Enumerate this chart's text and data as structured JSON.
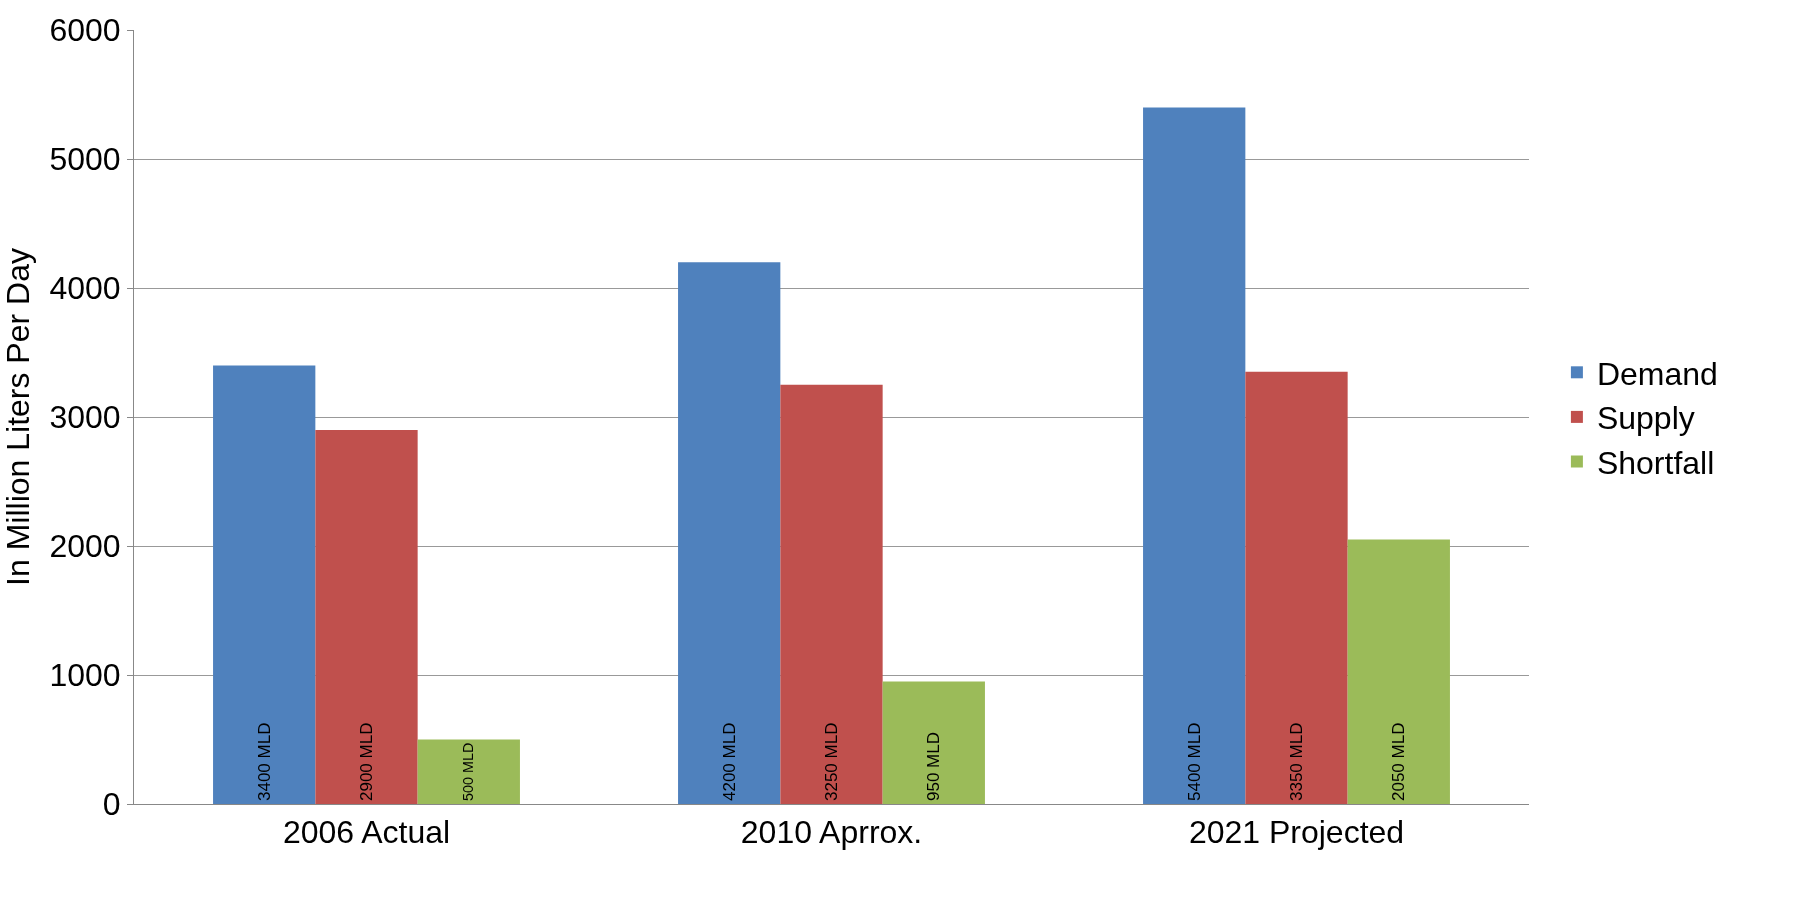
{
  "chart_data": {
    "type": "bar",
    "ylabel": "In Million Liters Per Day",
    "categories": [
      "2006 Actual",
      "2010 Aprrox.",
      "2021 Projected"
    ],
    "series": [
      {
        "name": "Demand",
        "color": "#4f81bd",
        "values": [
          3400,
          4200,
          5400
        ],
        "value_labels": [
          "3400 MLD",
          "4200 MLD",
          "5400 MLD"
        ]
      },
      {
        "name": "Supply",
        "color": "#c0504d",
        "values": [
          2900,
          3250,
          3350
        ],
        "value_labels": [
          "2900 MLD",
          "3250 MLD",
          "3350 MLD"
        ]
      },
      {
        "name": "Shortfall",
        "color": "#9bbb59",
        "values": [
          500,
          950,
          2050
        ],
        "value_labels": [
          "500 MLD",
          "950 MLD",
          "2050 MLD"
        ]
      }
    ],
    "ylim": [
      0,
      6000
    ],
    "yticks": [
      0,
      1000,
      2000,
      3000,
      4000,
      5000,
      6000
    ],
    "grid": "y",
    "legend": "right"
  }
}
